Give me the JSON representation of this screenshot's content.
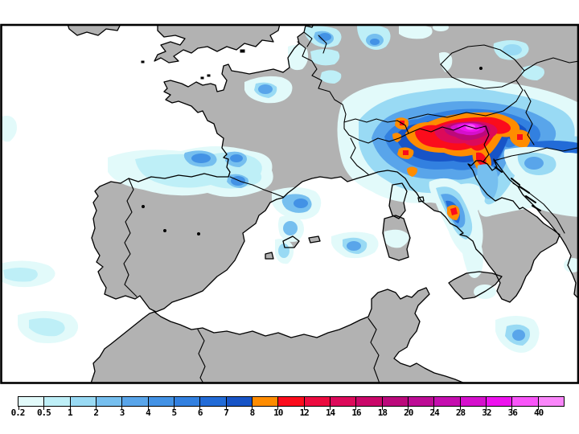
{
  "page": {
    "background": "#FFFFFF"
  },
  "map": {
    "sea_color": "#FFFFFF",
    "land_color": "#B2B2B2",
    "coastline_color": "#000000",
    "frame_color": "#000000",
    "type": "precipitation-contour-map",
    "region": "western-europe-mediterranean"
  },
  "legend": {
    "unit_labels": [
      "0.2",
      "0.5",
      "1",
      "2",
      "3",
      "4",
      "5",
      "6",
      "7",
      "8",
      "10",
      "12",
      "14",
      "16",
      "18",
      "20",
      "24",
      "28",
      "32",
      "36",
      "40"
    ],
    "colors": [
      "#E2FAFA",
      "#BEEFF7",
      "#99DAF4",
      "#76BFEF",
      "#59A5EA",
      "#4392E5",
      "#3280E0",
      "#226BD7",
      "#1754C7",
      "#FF8C00",
      "#FB0C1C",
      "#EC0B3F",
      "#DC0A5A",
      "#CA0769",
      "#BB097B",
      "#BD0C95",
      "#C50EAF",
      "#D510CC",
      "#EE12EE",
      "#F855F8",
      "#FA86FA"
    ]
  }
}
